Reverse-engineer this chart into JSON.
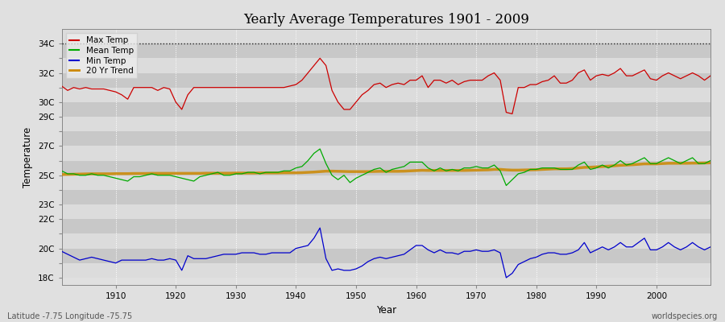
{
  "title": "Yearly Average Temperatures 1901 - 2009",
  "xlabel": "Year",
  "ylabel": "Temperature",
  "footer_left": "Latitude -7.75 Longitude -75.75",
  "footer_right": "worldspecies.org",
  "years": [
    1901,
    1902,
    1903,
    1904,
    1905,
    1906,
    1907,
    1908,
    1909,
    1910,
    1911,
    1912,
    1913,
    1914,
    1915,
    1916,
    1917,
    1918,
    1919,
    1920,
    1921,
    1922,
    1923,
    1924,
    1925,
    1926,
    1927,
    1928,
    1929,
    1930,
    1931,
    1932,
    1933,
    1934,
    1935,
    1936,
    1937,
    1938,
    1939,
    1940,
    1941,
    1942,
    1943,
    1944,
    1945,
    1946,
    1947,
    1948,
    1949,
    1950,
    1951,
    1952,
    1953,
    1954,
    1955,
    1956,
    1957,
    1958,
    1959,
    1960,
    1961,
    1962,
    1963,
    1964,
    1965,
    1966,
    1967,
    1968,
    1969,
    1970,
    1971,
    1972,
    1973,
    1974,
    1975,
    1976,
    1977,
    1978,
    1979,
    1980,
    1981,
    1982,
    1983,
    1984,
    1985,
    1986,
    1987,
    1988,
    1989,
    1990,
    1991,
    1992,
    1993,
    1994,
    1995,
    1996,
    1997,
    1998,
    1999,
    2000,
    2001,
    2002,
    2003,
    2004,
    2005,
    2006,
    2007,
    2008,
    2009
  ],
  "max_temp": [
    31.1,
    30.8,
    31.0,
    30.9,
    31.0,
    30.9,
    30.9,
    30.9,
    30.8,
    30.7,
    30.5,
    30.2,
    31.0,
    31.0,
    31.0,
    31.0,
    30.8,
    31.0,
    30.9,
    30.0,
    29.5,
    30.5,
    31.0,
    31.0,
    31.0,
    31.0,
    31.0,
    31.0,
    31.0,
    31.0,
    31.0,
    31.0,
    31.0,
    31.0,
    31.0,
    31.0,
    31.0,
    31.0,
    31.1,
    31.2,
    31.5,
    32.0,
    32.5,
    33.0,
    32.5,
    30.8,
    30.0,
    29.5,
    29.5,
    30.0,
    30.5,
    30.8,
    31.2,
    31.3,
    31.0,
    31.2,
    31.3,
    31.2,
    31.5,
    31.5,
    31.8,
    31.0,
    31.5,
    31.5,
    31.3,
    31.5,
    31.2,
    31.4,
    31.5,
    31.5,
    31.5,
    31.8,
    32.0,
    31.5,
    29.3,
    29.2,
    31.0,
    31.0,
    31.2,
    31.2,
    31.4,
    31.5,
    31.8,
    31.3,
    31.3,
    31.5,
    32.0,
    32.2,
    31.5,
    31.8,
    31.9,
    31.8,
    32.0,
    32.3,
    31.8,
    31.8,
    32.0,
    32.2,
    31.6,
    31.5,
    31.8,
    32.0,
    31.8,
    31.6,
    31.8,
    32.0,
    31.8,
    31.5,
    31.8
  ],
  "mean_temp": [
    25.3,
    25.1,
    25.1,
    25.0,
    25.0,
    25.1,
    25.0,
    25.0,
    24.9,
    24.8,
    24.7,
    24.6,
    24.9,
    24.9,
    25.0,
    25.1,
    25.0,
    25.0,
    25.0,
    24.9,
    24.8,
    24.7,
    24.6,
    24.9,
    25.0,
    25.1,
    25.2,
    25.0,
    25.0,
    25.1,
    25.1,
    25.2,
    25.2,
    25.1,
    25.2,
    25.2,
    25.2,
    25.3,
    25.3,
    25.5,
    25.6,
    26.0,
    26.5,
    26.8,
    25.8,
    25.0,
    24.7,
    25.0,
    24.5,
    24.8,
    25.0,
    25.2,
    25.4,
    25.5,
    25.2,
    25.4,
    25.5,
    25.6,
    25.9,
    25.9,
    25.9,
    25.5,
    25.3,
    25.5,
    25.3,
    25.4,
    25.3,
    25.5,
    25.5,
    25.6,
    25.5,
    25.5,
    25.7,
    25.3,
    24.3,
    24.7,
    25.1,
    25.2,
    25.4,
    25.4,
    25.5,
    25.5,
    25.5,
    25.4,
    25.4,
    25.4,
    25.7,
    25.9,
    25.4,
    25.5,
    25.7,
    25.5,
    25.7,
    26.0,
    25.7,
    25.8,
    26.0,
    26.2,
    25.8,
    25.8,
    26.0,
    26.2,
    26.0,
    25.8,
    26.0,
    26.2,
    25.8,
    25.8,
    26.0
  ],
  "min_temp": [
    19.8,
    19.6,
    19.4,
    19.2,
    19.3,
    19.4,
    19.3,
    19.2,
    19.1,
    19.0,
    19.2,
    19.2,
    19.2,
    19.2,
    19.2,
    19.3,
    19.2,
    19.2,
    19.3,
    19.2,
    18.5,
    19.5,
    19.3,
    19.3,
    19.3,
    19.4,
    19.5,
    19.6,
    19.6,
    19.6,
    19.7,
    19.7,
    19.7,
    19.6,
    19.6,
    19.7,
    19.7,
    19.7,
    19.7,
    20.0,
    20.1,
    20.2,
    20.7,
    21.4,
    19.3,
    18.5,
    18.6,
    18.5,
    18.5,
    18.6,
    18.8,
    19.1,
    19.3,
    19.4,
    19.3,
    19.4,
    19.5,
    19.6,
    19.9,
    20.2,
    20.2,
    19.9,
    19.7,
    19.9,
    19.7,
    19.7,
    19.6,
    19.8,
    19.8,
    19.9,
    19.8,
    19.8,
    19.9,
    19.7,
    18.0,
    18.3,
    18.9,
    19.1,
    19.3,
    19.4,
    19.6,
    19.7,
    19.7,
    19.6,
    19.6,
    19.7,
    19.9,
    20.4,
    19.7,
    19.9,
    20.1,
    19.9,
    20.1,
    20.4,
    20.1,
    20.1,
    20.4,
    20.7,
    19.9,
    19.9,
    20.1,
    20.4,
    20.1,
    19.9,
    20.1,
    20.4,
    20.1,
    19.9,
    20.1
  ],
  "trend": [
    25.05,
    25.06,
    25.07,
    25.08,
    25.09,
    25.1,
    25.1,
    25.1,
    25.1,
    25.11,
    25.11,
    25.11,
    25.12,
    25.12,
    25.12,
    25.13,
    25.13,
    25.13,
    25.13,
    25.13,
    25.13,
    25.13,
    25.13,
    25.13,
    25.14,
    25.14,
    25.14,
    25.14,
    25.14,
    25.15,
    25.15,
    25.15,
    25.15,
    25.16,
    25.16,
    25.16,
    25.16,
    25.17,
    25.17,
    25.17,
    25.18,
    25.2,
    25.22,
    25.25,
    25.28,
    25.28,
    25.27,
    25.26,
    25.25,
    25.25,
    25.25,
    25.25,
    25.26,
    25.27,
    25.27,
    25.27,
    25.27,
    25.28,
    25.3,
    25.32,
    25.34,
    25.33,
    25.33,
    25.33,
    25.33,
    25.33,
    25.33,
    25.33,
    25.34,
    25.35,
    25.36,
    25.37,
    25.4,
    25.4,
    25.37,
    25.35,
    25.35,
    25.36,
    25.37,
    25.38,
    25.4,
    25.42,
    25.44,
    25.44,
    25.44,
    25.46,
    25.5,
    25.54,
    25.55,
    25.57,
    25.6,
    25.62,
    25.65,
    25.68,
    25.7,
    25.72,
    25.75,
    25.78,
    25.78,
    25.78,
    25.8,
    25.82,
    25.82,
    25.82,
    25.82,
    25.83,
    25.83,
    25.84,
    25.85
  ],
  "max_color": "#cc0000",
  "mean_color": "#00aa00",
  "min_color": "#0000cc",
  "trend_color": "#cc8800",
  "bg_color": "#e0e0e0",
  "band_light": "#dcdcdc",
  "band_dark": "#c8c8c8",
  "grid_color": "#ffffff",
  "ylim_min": 17.5,
  "ylim_max": 35.0,
  "ytick_vals": [
    18,
    19,
    20,
    21,
    22,
    23,
    24,
    25,
    26,
    27,
    28,
    29,
    30,
    31,
    32,
    33,
    34
  ],
  "ytick_show": {
    "18": true,
    "19": false,
    "20": true,
    "21": false,
    "22": true,
    "23": true,
    "24": false,
    "25": true,
    "26": false,
    "27": true,
    "28": false,
    "29": true,
    "30": true,
    "31": false,
    "32": true,
    "33": false,
    "34": true
  },
  "xtick_vals": [
    1910,
    1920,
    1930,
    1940,
    1950,
    1960,
    1970,
    1980,
    1990,
    2000
  ],
  "dashed_line_y": 34.0
}
